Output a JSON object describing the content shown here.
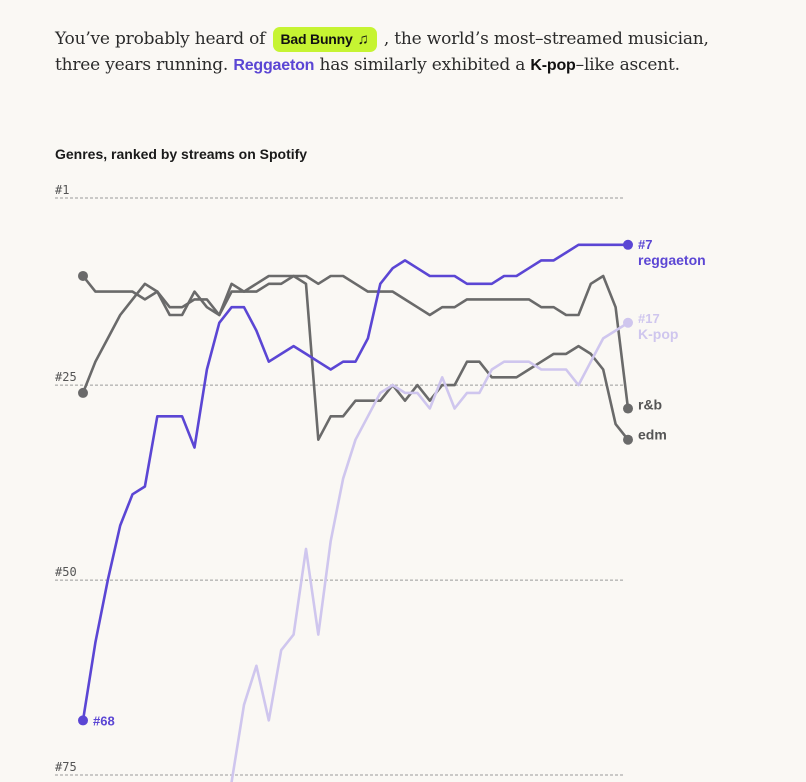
{
  "intro": {
    "part1": "You’ve probably heard of",
    "artist": "Bad Bunny",
    "artist_icon": "music-note-icon",
    "part2": ", the world’s most–streamed musician, three years running.",
    "genre1": "Reggaeton",
    "part3": "has similarly exhibited a",
    "genre2": "K-pop",
    "part4": "–like ascent."
  },
  "colors": {
    "reggaeton": "#5b46d4",
    "kpop": "#cfc6ee",
    "rnb": "#6a6a6a",
    "edm": "#6a6a6a",
    "pill": "#c6f432"
  },
  "chart_data": {
    "type": "line",
    "title": "Genres, ranked by streams on Spotify",
    "y_axis": {
      "inverted": true,
      "ylim": [
        1,
        75
      ],
      "ticks": [
        "#1",
        "#25",
        "#50",
        "#75"
      ],
      "tick_values": [
        1,
        25,
        50,
        75
      ],
      "grid": "dashed"
    },
    "x_count": 45,
    "series": [
      {
        "name": "reggaeton",
        "color": "#5b46d4",
        "start_label": "#68",
        "end_label": "#7",
        "values": [
          68,
          58,
          50,
          43,
          39,
          38,
          29,
          29,
          29,
          33,
          23,
          17,
          15,
          15,
          18,
          22,
          21,
          20,
          21,
          22,
          23,
          22,
          22,
          19,
          12,
          10,
          9,
          10,
          11,
          11,
          11,
          12,
          12,
          12,
          11,
          11,
          10,
          9,
          9,
          8,
          7,
          7,
          7,
          7,
          7
        ]
      },
      {
        "name": "K-pop",
        "color": "#cfc6ee",
        "end_label": "#17",
        "values": [
          null,
          null,
          null,
          null,
          null,
          null,
          null,
          null,
          null,
          null,
          null,
          null,
          76,
          66,
          61,
          68,
          59,
          57,
          46,
          57,
          45,
          37,
          32,
          29,
          26,
          25,
          26,
          26,
          28,
          24,
          28,
          26,
          26,
          23,
          22,
          22,
          22,
          23,
          23,
          23,
          25,
          22,
          19,
          18,
          17
        ]
      },
      {
        "name": "r&b",
        "color": "#6a6a6a",
        "end_label": "r&b",
        "values": [
          11,
          13,
          13,
          13,
          13,
          14,
          13,
          16,
          16,
          13,
          15,
          16,
          12,
          13,
          13,
          12,
          12,
          11,
          11,
          12,
          11,
          11,
          12,
          13,
          13,
          13,
          14,
          15,
          16,
          15,
          15,
          14,
          14,
          14,
          14,
          14,
          14,
          15,
          15,
          16,
          16,
          12,
          11,
          15,
          28
        ]
      },
      {
        "name": "edm",
        "color": "#6a6a6a",
        "end_label": "edm",
        "values": [
          26,
          22,
          19,
          16,
          14,
          12,
          13,
          15,
          15,
          14,
          14,
          16,
          13,
          13,
          12,
          11,
          11,
          11,
          12,
          32,
          29,
          29,
          27,
          27,
          27,
          25,
          27,
          25,
          27,
          25,
          25,
          22,
          22,
          24,
          24,
          24,
          23,
          22,
          21,
          21,
          20,
          21,
          23,
          30,
          32
        ]
      }
    ]
  }
}
